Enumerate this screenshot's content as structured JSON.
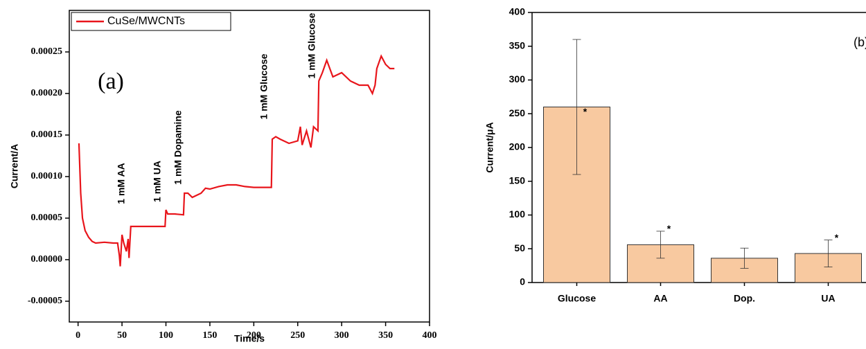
{
  "chart_data": [
    {
      "type": "line",
      "xlabel": "Time/s",
      "ylabel": "Current/A",
      "xlim": [
        -10,
        400
      ],
      "xticks": [
        0,
        50,
        100,
        150,
        200,
        250,
        300,
        350,
        400
      ],
      "ylim": [
        -7.5e-05,
        0.0003
      ],
      "yticks": [
        {
          "value": -5e-05,
          "label": "-0.00005"
        },
        {
          "value": 0,
          "label": "0.00000"
        },
        {
          "value": 5e-05,
          "label": "0.00005"
        },
        {
          "value": 0.0001,
          "label": "0.00010"
        },
        {
          "value": 0.00015,
          "label": "0.00015"
        },
        {
          "value": 0.0002,
          "label": "0.00020"
        },
        {
          "value": 0.00025,
          "label": "0.00025"
        }
      ],
      "x": [
        1,
        3,
        5,
        8,
        12,
        16,
        20,
        30,
        40,
        45,
        47,
        48,
        50,
        52,
        55,
        57,
        58,
        60,
        70,
        80,
        90,
        99,
        100,
        102,
        110,
        120,
        121,
        125,
        130,
        140,
        145,
        150,
        160,
        170,
        180,
        190,
        200,
        210,
        220,
        221,
        225,
        230,
        240,
        250,
        253,
        255,
        260,
        265,
        268,
        273,
        274,
        278,
        283,
        290,
        300,
        310,
        320,
        330,
        335,
        338,
        340,
        345,
        350,
        355,
        360
      ],
      "series": [
        {
          "name": "CuSe/MWCNTs",
          "color": "#e8151b",
          "values": [
            0.00014,
            8e-05,
            5e-05,
            3.5e-05,
            2.7e-05,
            2.2e-05,
            2e-05,
            2.1e-05,
            2e-05,
            2e-05,
            5e-06,
            -8e-06,
            3e-05,
            2e-05,
            1e-05,
            2.5e-05,
            2e-06,
            4e-05,
            4e-05,
            4e-05,
            4e-05,
            4e-05,
            6e-05,
            5.5e-05,
            5.5e-05,
            5.4e-05,
            8e-05,
            8e-05,
            7.5e-05,
            8e-05,
            8.6e-05,
            8.5e-05,
            8.8e-05,
            9e-05,
            9e-05,
            8.8e-05,
            8.7e-05,
            8.7e-05,
            8.7e-05,
            0.000145,
            0.000148,
            0.000145,
            0.00014,
            0.000143,
            0.00016,
            0.000138,
            0.000155,
            0.000135,
            0.00016,
            0.000155,
            0.000215,
            0.000225,
            0.00024,
            0.00022,
            0.000225,
            0.000215,
            0.00021,
            0.00021,
            0.0002,
            0.00021,
            0.00023,
            0.000245,
            0.000235,
            0.00023,
            0.00023
          ]
        }
      ],
      "annotations": [
        "(a)",
        "1 mM AA",
        "1 mM UA",
        "1 mM Dopamine",
        "1 mM Glucose",
        "1 mM Glucose"
      ]
    },
    {
      "type": "bar",
      "ylabel": "Current/μA",
      "categories": [
        "Glucose",
        "AA",
        "Dop.",
        "UA"
      ],
      "values": [
        260,
        56,
        36,
        43
      ],
      "errors": [
        100,
        20,
        15,
        20
      ],
      "color": "#f8c9a0",
      "ylim": [
        0,
        400
      ],
      "yticks": [
        0,
        50,
        100,
        150,
        200,
        250,
        300,
        350,
        400
      ],
      "stars": [
        "*",
        "*",
        null,
        "*"
      ],
      "annotations": [
        "(b)"
      ]
    }
  ]
}
